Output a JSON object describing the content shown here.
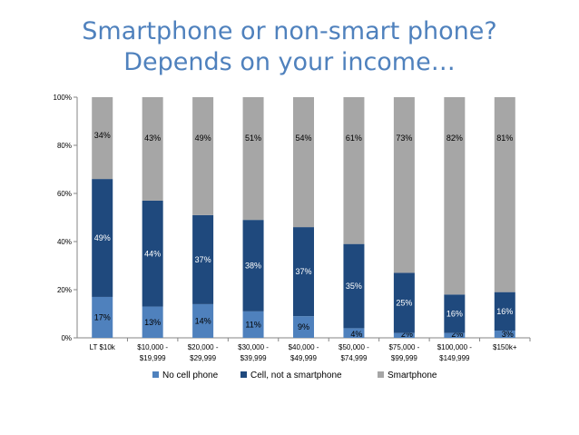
{
  "title": {
    "line1": "Smartphone or non-smart phone?",
    "line2": "Depends on your income…"
  },
  "colors": {
    "title": "#4F81BD",
    "no_cell": "#4F81BD",
    "cell_not_smart": "#1F497D",
    "smartphone": "#A6A6A6"
  },
  "chart_data": {
    "type": "bar",
    "stacked": true,
    "percent_stacked": true,
    "categories": [
      [
        "LT $10k"
      ],
      [
        "$10,000 -",
        "$19,999"
      ],
      [
        "$20,000 -",
        "$29,999"
      ],
      [
        "$30,000 -",
        "$39,999"
      ],
      [
        "$40,000 -",
        "$49,999"
      ],
      [
        "$50,000 -",
        "$74,999"
      ],
      [
        "$75,000 -",
        "$99,999"
      ],
      [
        "$100,000 -",
        "$149,999"
      ],
      [
        "$150k+"
      ]
    ],
    "series": [
      {
        "name": "No cell phone",
        "values": [
          17,
          13,
          14,
          11,
          9,
          4,
          2,
          2,
          3
        ],
        "labels": [
          "17%",
          "13%",
          "14%",
          "11%",
          "9%",
          "4%",
          "2%",
          "2%",
          "3%"
        ]
      },
      {
        "name": "Cell, not a smartphone",
        "values": [
          49,
          44,
          37,
          38,
          37,
          35,
          25,
          16,
          16
        ],
        "labels": [
          "49%",
          "44%",
          "37%",
          "38%",
          "37%",
          "35%",
          "25%",
          "16%",
          "16%"
        ]
      },
      {
        "name": "Smartphone",
        "values": [
          34,
          43,
          49,
          51,
          54,
          61,
          73,
          82,
          81
        ],
        "labels": [
          "34%",
          "43%",
          "49%",
          "51%",
          "54%",
          "61%",
          "73%",
          "82%",
          "81%"
        ]
      }
    ],
    "yticks": [
      "0%",
      "20%",
      "40%",
      "60%",
      "80%",
      "100%"
    ],
    "ylim": [
      0,
      100
    ],
    "grid": false,
    "legend_position": "bottom"
  }
}
